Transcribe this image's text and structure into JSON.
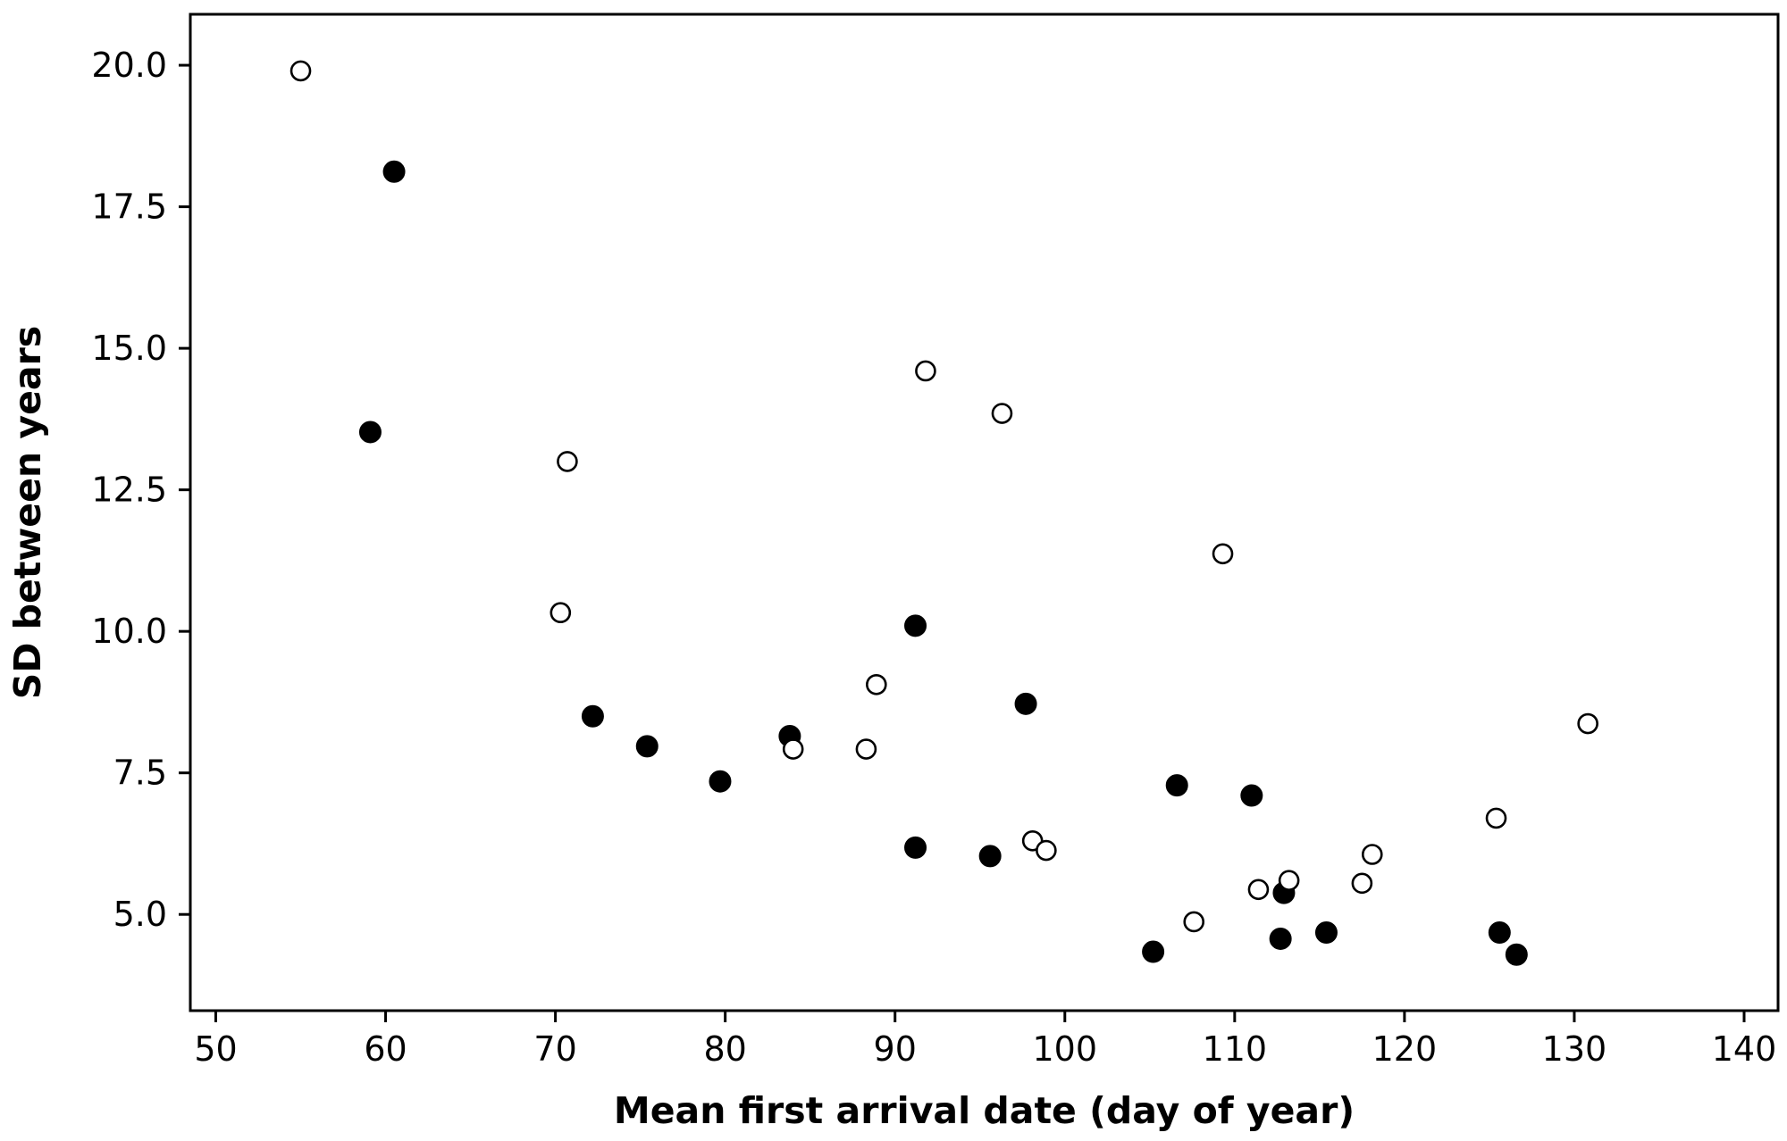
{
  "chart_data": {
    "type": "scatter",
    "title": "",
    "xlabel": "Mean first arrival date (day of year)",
    "ylabel": "SD between years",
    "xlim": [
      48.5,
      142.0
    ],
    "ylim": [
      3.3,
      20.9
    ],
    "xticks": [
      50,
      60,
      70,
      80,
      90,
      100,
      110,
      120,
      130,
      140
    ],
    "yticks": [
      5.0,
      7.5,
      10.0,
      12.5,
      15.0,
      17.5,
      20.0
    ],
    "xtick_labels": [
      "50",
      "60",
      "70",
      "80",
      "90",
      "100",
      "110",
      "120",
      "130",
      "140"
    ],
    "ytick_labels": [
      "5.0",
      "7.5",
      "10.0",
      "12.5",
      "15.0",
      "17.5",
      "20.0"
    ],
    "grid": false,
    "legend": "none",
    "marker_color": "#000000",
    "series": [
      {
        "marker": "filled-circle",
        "points": [
          {
            "x": 59.1,
            "y": 13.52
          },
          {
            "x": 60.5,
            "y": 18.12
          },
          {
            "x": 72.2,
            "y": 8.5
          },
          {
            "x": 75.4,
            "y": 7.97
          },
          {
            "x": 79.7,
            "y": 7.35
          },
          {
            "x": 83.8,
            "y": 8.15
          },
          {
            "x": 91.2,
            "y": 10.1
          },
          {
            "x": 91.2,
            "y": 6.18
          },
          {
            "x": 95.6,
            "y": 6.03
          },
          {
            "x": 97.7,
            "y": 8.72
          },
          {
            "x": 105.2,
            "y": 4.34
          },
          {
            "x": 106.6,
            "y": 7.28
          },
          {
            "x": 111.0,
            "y": 7.1
          },
          {
            "x": 112.7,
            "y": 4.57
          },
          {
            "x": 112.9,
            "y": 5.38
          },
          {
            "x": 115.4,
            "y": 4.68
          },
          {
            "x": 125.6,
            "y": 4.68
          },
          {
            "x": 126.6,
            "y": 4.29
          }
        ]
      },
      {
        "marker": "open-circle",
        "points": [
          {
            "x": 55.0,
            "y": 19.9
          },
          {
            "x": 70.3,
            "y": 10.33
          },
          {
            "x": 70.7,
            "y": 13.0
          },
          {
            "x": 84.0,
            "y": 7.92
          },
          {
            "x": 88.3,
            "y": 7.92
          },
          {
            "x": 88.9,
            "y": 9.06
          },
          {
            "x": 91.8,
            "y": 14.6
          },
          {
            "x": 96.3,
            "y": 13.85
          },
          {
            "x": 98.1,
            "y": 6.3
          },
          {
            "x": 98.9,
            "y": 6.13
          },
          {
            "x": 107.6,
            "y": 4.87
          },
          {
            "x": 109.3,
            "y": 11.37
          },
          {
            "x": 111.4,
            "y": 5.44
          },
          {
            "x": 113.2,
            "y": 5.6
          },
          {
            "x": 117.5,
            "y": 5.55
          },
          {
            "x": 118.1,
            "y": 6.06
          },
          {
            "x": 125.4,
            "y": 6.7
          },
          {
            "x": 130.8,
            "y": 8.37
          }
        ]
      }
    ]
  }
}
